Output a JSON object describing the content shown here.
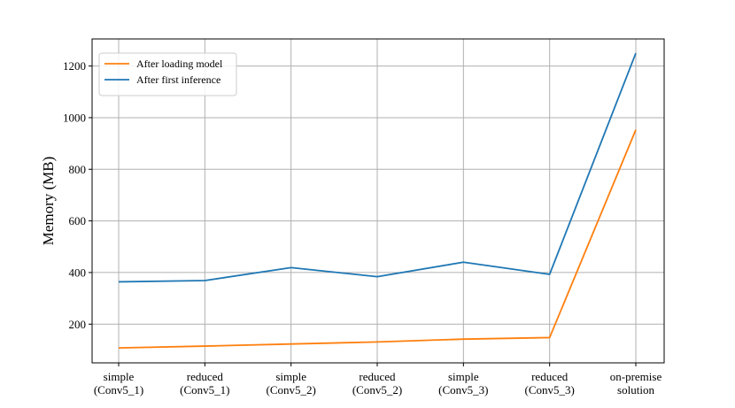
{
  "chart_data": {
    "type": "line",
    "categories": [
      [
        "simple",
        "(Conv5_1)"
      ],
      [
        "reduced",
        "(Conv5_1)"
      ],
      [
        "simple",
        "(Conv5_2)"
      ],
      [
        "reduced",
        "(Conv5_2)"
      ],
      [
        "simple",
        "(Conv5_3)"
      ],
      [
        "reduced",
        "(Conv5_3)"
      ],
      [
        "on-premise",
        "solution"
      ]
    ],
    "series": [
      {
        "name": "After loading model",
        "color": "#ff7f0e",
        "values": [
          108,
          115,
          123,
          131,
          142,
          148,
          953
        ]
      },
      {
        "name": "After first inference",
        "color": "#1f77b4",
        "values": [
          364,
          369,
          419,
          384,
          440,
          393,
          1250
        ]
      }
    ],
    "title": "",
    "xlabel": "",
    "ylabel": "Memory (MB)",
    "ylim": [
      50,
      1305
    ],
    "yticks": [
      200,
      400,
      600,
      800,
      1000,
      1200
    ],
    "grid": true,
    "legend_position": "top-left"
  }
}
